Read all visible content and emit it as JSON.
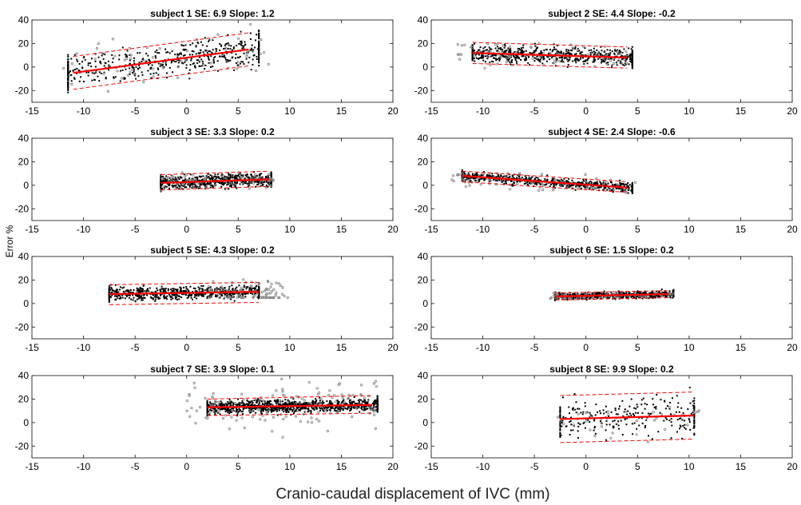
{
  "figure": {
    "xlabel": "Cranio-caudal displacement of IVC (mm)",
    "ylabel": "Error %"
  },
  "colors": {
    "inlier": "#000000",
    "outlier": "#808080",
    "fit": "#ff0000",
    "bounds": "#ff0000"
  },
  "chart_data": [
    {
      "type": "scatter",
      "title": "subject 1  SE: 6.9   Slope: 1.2",
      "xlim": [
        -15,
        20
      ],
      "ylim": [
        -30,
        40
      ],
      "xticks": [
        -15,
        -10,
        -5,
        0,
        5,
        10,
        15,
        20
      ],
      "yticks": [
        -20,
        0,
        20,
        40
      ],
      "xlabel": "",
      "ylabel": "",
      "grid": false,
      "fit": {
        "x": [
          -11,
          6
        ],
        "y": [
          -5,
          15
        ]
      },
      "bounds": {
        "upper": {
          "x": [
            -11,
            6
          ],
          "y": [
            9,
            29
          ]
        },
        "lower": {
          "x": [
            -11,
            6
          ],
          "y": [
            -19,
            1
          ]
        }
      },
      "cloud": {
        "x_range": [
          -11.5,
          7
        ],
        "center_x": 0,
        "spread_y": 10,
        "density": "medium"
      },
      "outlier_cloud": {
        "x_range": [
          -12,
          8
        ],
        "y_range": [
          -25,
          38
        ]
      }
    },
    {
      "type": "scatter",
      "title": "subject 2  SE: 4.4   Slope: -0.2",
      "xlim": [
        -15,
        20
      ],
      "ylim": [
        -30,
        40
      ],
      "xticks": [
        -15,
        -10,
        -5,
        0,
        5,
        10,
        15,
        20
      ],
      "yticks": [
        -20,
        0,
        20,
        40
      ],
      "xlabel": "",
      "ylabel": "",
      "grid": false,
      "fit": {
        "x": [
          -11,
          4
        ],
        "y": [
          12,
          8
        ]
      },
      "bounds": {
        "upper": {
          "x": [
            -11,
            4
          ],
          "y": [
            21,
            17
          ]
        },
        "lower": {
          "x": [
            -11,
            4
          ],
          "y": [
            3,
            -1
          ]
        }
      },
      "cloud": {
        "x_range": [
          -11,
          4.5
        ],
        "center_x": -2,
        "spread_y": 5,
        "density": "dense"
      },
      "outlier_cloud": {
        "x_range": [
          -13,
          4
        ],
        "y_range": [
          -8,
          20
        ]
      }
    },
    {
      "type": "scatter",
      "title": "subject 3  SE: 3.3   Slope: 0.2",
      "xlim": [
        -15,
        20
      ],
      "ylim": [
        -30,
        40
      ],
      "xticks": [
        -15,
        -10,
        -5,
        0,
        5,
        10,
        15,
        20
      ],
      "yticks": [
        -20,
        0,
        20,
        40
      ],
      "xlabel": "",
      "ylabel": "",
      "grid": false,
      "fit": {
        "x": [
          -2.5,
          8
        ],
        "y": [
          2,
          5
        ]
      },
      "bounds": {
        "upper": {
          "x": [
            -2.5,
            8
          ],
          "y": [
            9,
            12
          ]
        },
        "lower": {
          "x": [
            -2.5,
            8
          ],
          "y": [
            -4,
            -1
          ]
        }
      },
      "cloud": {
        "x_range": [
          -2.5,
          8.2
        ],
        "center_x": 1,
        "spread_y": 4,
        "density": "dense"
      },
      "outlier_cloud": {
        "x_range": [
          -2.5,
          8.5
        ],
        "y_range": [
          -5,
          14
        ]
      }
    },
    {
      "type": "scatter",
      "title": "subject 4  SE: 2.4   Slope: -0.6",
      "xlim": [
        -15,
        20
      ],
      "ylim": [
        -30,
        40
      ],
      "xticks": [
        -15,
        -10,
        -5,
        0,
        5,
        10,
        15,
        20
      ],
      "yticks": [
        -20,
        0,
        20,
        40
      ],
      "xlabel": "",
      "ylabel": "",
      "grid": false,
      "fit": {
        "x": [
          -12,
          4
        ],
        "y": [
          8,
          -2
        ]
      },
      "bounds": {
        "upper": {
          "x": [
            -12,
            4
          ],
          "y": [
            12,
            3
          ]
        },
        "lower": {
          "x": [
            -12,
            4
          ],
          "y": [
            3,
            -6
          ]
        }
      },
      "cloud": {
        "x_range": [
          -12,
          4.5
        ],
        "center_x": -4,
        "spread_y": 3,
        "density": "dense"
      },
      "outlier_cloud": {
        "x_range": [
          -13,
          5
        ],
        "y_range": [
          -12,
          10
        ]
      }
    },
    {
      "type": "scatter",
      "title": "subject 5  SE: 4.3   Slope: 0.2",
      "xlim": [
        -15,
        20
      ],
      "ylim": [
        -30,
        40
      ],
      "xticks": [
        -15,
        -10,
        -5,
        0,
        5,
        10,
        15,
        20
      ],
      "yticks": [
        -20,
        0,
        20,
        40
      ],
      "xlabel": "",
      "ylabel": "",
      "grid": false,
      "fit": {
        "x": [
          -7.5,
          7
        ],
        "y": [
          8,
          10
        ]
      },
      "bounds": {
        "upper": {
          "x": [
            -7.5,
            7
          ],
          "y": [
            16,
            18
          ]
        },
        "lower": {
          "x": [
            -7.5,
            7
          ],
          "y": [
            -1,
            1
          ]
        }
      },
      "cloud": {
        "x_range": [
          -7.5,
          7
        ],
        "center_x": -2,
        "spread_y": 4,
        "density": "dense"
      },
      "outlier_cloud": {
        "x_range": [
          2,
          10
        ],
        "y_range": [
          5,
          40
        ]
      }
    },
    {
      "type": "scatter",
      "title": "subject 6  SE: 1.5   Slope: 0.2",
      "xlim": [
        -15,
        20
      ],
      "ylim": [
        -30,
        40
      ],
      "xticks": [
        -15,
        -10,
        -5,
        0,
        5,
        10,
        15,
        20
      ],
      "yticks": [
        -20,
        0,
        20,
        40
      ],
      "xlabel": "",
      "ylabel": "",
      "grid": false,
      "fit": {
        "x": [
          -3,
          8
        ],
        "y": [
          6,
          8
        ]
      },
      "bounds": {
        "upper": {
          "x": [
            -3,
            8
          ],
          "y": [
            9,
            11
          ]
        },
        "lower": {
          "x": [
            -3,
            8
          ],
          "y": [
            3,
            5
          ]
        }
      },
      "cloud": {
        "x_range": [
          -3,
          8.5
        ],
        "center_x": 3,
        "spread_y": 2,
        "density": "dense"
      },
      "outlier_cloud": {
        "x_range": [
          -3.5,
          8.5
        ],
        "y_range": [
          3,
          12
        ]
      }
    },
    {
      "type": "scatter",
      "title": "subject 7  SE: 3.9   Slope: 0.1",
      "xlim": [
        -15,
        20
      ],
      "ylim": [
        -30,
        40
      ],
      "xticks": [
        -15,
        -10,
        -5,
        0,
        5,
        10,
        15,
        20
      ],
      "yticks": [
        -20,
        0,
        20,
        40
      ],
      "xlabel": "",
      "ylabel": "",
      "grid": false,
      "fit": {
        "x": [
          2,
          18
        ],
        "y": [
          13,
          15
        ]
      },
      "bounds": {
        "upper": {
          "x": [
            2,
            18
          ],
          "y": [
            20,
            23
          ]
        },
        "lower": {
          "x": [
            2,
            18
          ],
          "y": [
            6,
            8
          ]
        }
      },
      "cloud": {
        "x_range": [
          2,
          18.5
        ],
        "center_x": 9,
        "spread_y": 4,
        "density": "very dense"
      },
      "outlier_cloud": {
        "x_range": [
          0,
          18.5
        ],
        "y_range": [
          -20,
          38
        ]
      }
    },
    {
      "type": "scatter",
      "title": "subject 8  SE: 9.9   Slope: 0.2",
      "xlim": [
        -15,
        20
      ],
      "ylim": [
        -30,
        40
      ],
      "xticks": [
        -15,
        -10,
        -5,
        0,
        5,
        10,
        15,
        20
      ],
      "yticks": [
        -20,
        0,
        20,
        40
      ],
      "xlabel": "",
      "ylabel": "",
      "grid": false,
      "fit": {
        "x": [
          -2.5,
          10.5
        ],
        "y": [
          3,
          6
        ]
      },
      "bounds": {
        "upper": {
          "x": [
            -2.5,
            10.5
          ],
          "y": [
            23,
            26
          ]
        },
        "lower": {
          "x": [
            -2.5,
            10.5
          ],
          "y": [
            -17,
            -14
          ]
        }
      },
      "cloud": {
        "x_range": [
          -2.5,
          10.5
        ],
        "center_x": 3,
        "spread_y": 12,
        "density": "sparse"
      },
      "outlier_cloud": {
        "x_range": [
          -3,
          12
        ],
        "y_range": [
          -24,
          38
        ]
      }
    }
  ]
}
